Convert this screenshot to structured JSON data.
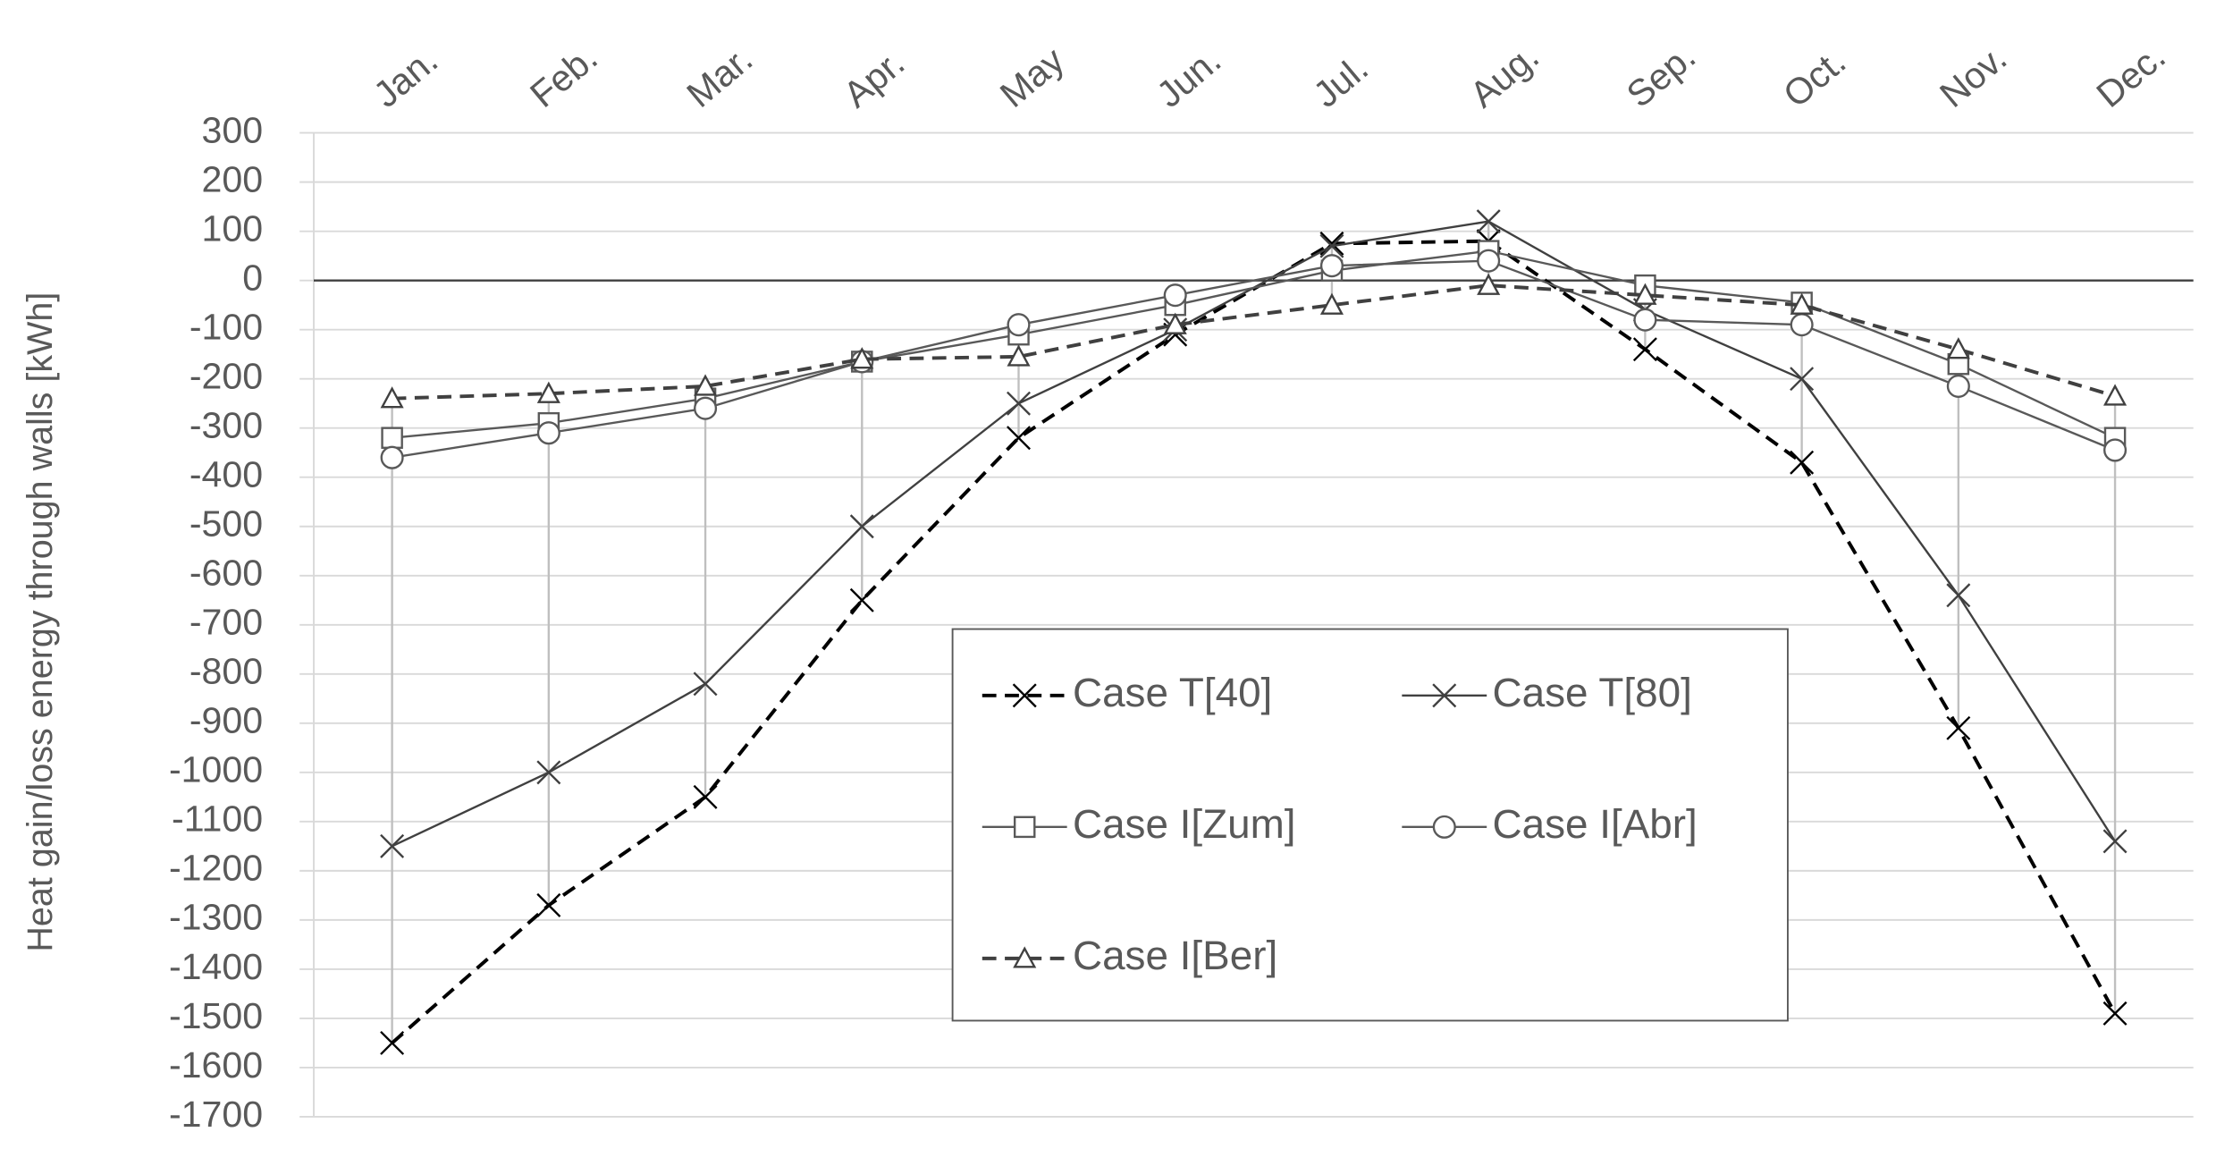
{
  "chart_data": {
    "type": "line",
    "y_label": "Heat gain/loss energy through walls [kWh]",
    "categories": [
      "Jan.",
      "Feb.",
      "Mar.",
      "Apr.",
      "May",
      "Jun.",
      "Jul.",
      "Aug.",
      "Sep.",
      "Oct.",
      "Nov.",
      "Dec."
    ],
    "ylim": [
      -1700,
      300
    ],
    "yticks": [
      300,
      200,
      100,
      0,
      -100,
      -200,
      -300,
      -400,
      -500,
      -600,
      -700,
      -800,
      -900,
      -1000,
      -1100,
      -1200,
      -1300,
      -1400,
      -1500,
      -1600,
      -1700
    ],
    "grid": true,
    "series": [
      {
        "name": "Case T[40]",
        "color": "#000000",
        "dashed": true,
        "marker": "x",
        "values": [
          -1550,
          -1270,
          -1050,
          -650,
          -320,
          -110,
          75,
          80,
          -140,
          -370,
          -910,
          -1490
        ]
      },
      {
        "name": "Case T[80]",
        "color": "#404040",
        "dashed": false,
        "marker": "x",
        "values": [
          -1150,
          -1000,
          -820,
          -500,
          -250,
          -100,
          70,
          120,
          -60,
          -200,
          -640,
          -1140
        ]
      },
      {
        "name": "Case I[Zum]",
        "color": "#595959",
        "dashed": false,
        "marker": "square",
        "values": [
          -320,
          -290,
          -240,
          -165,
          -110,
          -50,
          20,
          60,
          -10,
          -45,
          -170,
          -320
        ]
      },
      {
        "name": "Case I[Abr]",
        "color": "#595959",
        "dashed": false,
        "marker": "circle",
        "values": [
          -360,
          -310,
          -260,
          -165,
          -90,
          -30,
          30,
          40,
          -80,
          -90,
          -215,
          -345
        ]
      },
      {
        "name": "Case I[Ber]",
        "color": "#404040",
        "dashed": true,
        "marker": "triangle",
        "values": [
          -240,
          -230,
          -215,
          -160,
          -155,
          -90,
          -50,
          -10,
          -30,
          -50,
          -140,
          -235
        ]
      }
    ]
  }
}
